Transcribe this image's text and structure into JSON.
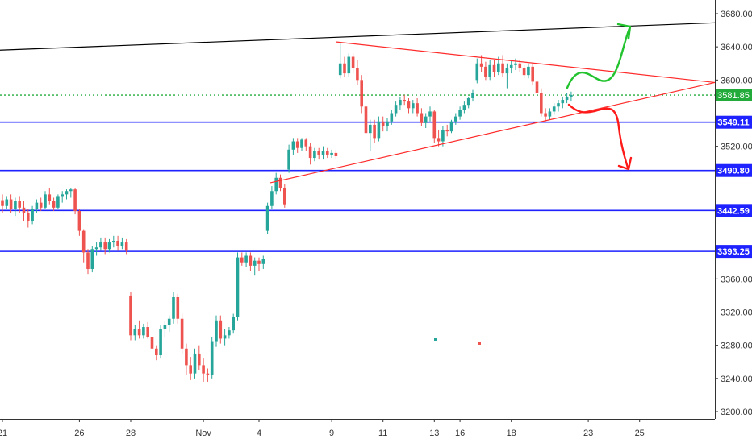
{
  "chart_data": {
    "type": "candlestick",
    "colors": {
      "up": "#26a69a",
      "down": "#ef5350",
      "level": "#1e22ff",
      "current": "#22ab3a",
      "trendline_top": "#000000",
      "triangle": "#ff2b2b",
      "arrow_up": "#22c32e",
      "arrow_down": "#ff1a1a",
      "axis_text": "#333333"
    },
    "y_range": [
      3196,
      3690
    ],
    "y_ticks": [
      "3200.00",
      "3240.00",
      "3280.00",
      "3320.00",
      "3360.00",
      "3520.00",
      "3600.00",
      "3640.00",
      "3680.00"
    ],
    "x_ticks": [
      {
        "label": "21",
        "i": 0
      },
      {
        "label": "26",
        "i": 18
      },
      {
        "label": "28",
        "i": 30
      },
      {
        "label": "Nov",
        "i": 47
      },
      {
        "label": "4",
        "i": 60
      },
      {
        "label": "9",
        "i": 77
      },
      {
        "label": "11",
        "i": 89
      },
      {
        "label": "13",
        "i": 101
      },
      {
        "label": "16",
        "i": 107
      },
      {
        "label": "18",
        "i": 119
      },
      {
        "label": "23",
        "i": 137
      },
      {
        "label": "25",
        "i": 149
      }
    ],
    "levels": [
      {
        "label": "3549.11",
        "value": 3549.11
      },
      {
        "label": "3490.80",
        "value": 3490.8
      },
      {
        "label": "3442.59",
        "value": 3442.59
      },
      {
        "label": "3393.25",
        "value": 3393.25
      }
    ],
    "current_price": {
      "label": "3581.85",
      "value": 3581.85
    },
    "candles": [
      [
        3455,
        3462,
        3440,
        3448
      ],
      [
        3448,
        3460,
        3444,
        3456
      ],
      [
        3456,
        3462,
        3440,
        3444
      ],
      [
        3444,
        3458,
        3436,
        3454
      ],
      [
        3454,
        3460,
        3440,
        3446
      ],
      [
        3446,
        3454,
        3430,
        3440
      ],
      [
        3440,
        3444,
        3422,
        3430
      ],
      [
        3430,
        3448,
        3426,
        3444
      ],
      [
        3444,
        3456,
        3440,
        3452
      ],
      [
        3452,
        3458,
        3442,
        3446
      ],
      [
        3446,
        3466,
        3444,
        3462
      ],
      [
        3462,
        3470,
        3450,
        3454
      ],
      [
        3454,
        3458,
        3442,
        3446
      ],
      [
        3446,
        3462,
        3444,
        3460
      ],
      [
        3460,
        3466,
        3452,
        3462
      ],
      [
        3462,
        3468,
        3456,
        3466
      ],
      [
        3466,
        3470,
        3458,
        3468
      ],
      [
        3468,
        3470,
        3438,
        3442
      ],
      [
        3442,
        3444,
        3412,
        3418
      ],
      [
        3418,
        3420,
        3380,
        3392
      ],
      [
        3392,
        3396,
        3366,
        3372
      ],
      [
        3372,
        3400,
        3368,
        3396
      ],
      [
        3396,
        3404,
        3388,
        3398
      ],
      [
        3398,
        3410,
        3394,
        3404
      ],
      [
        3404,
        3410,
        3390,
        3396
      ],
      [
        3396,
        3408,
        3392,
        3404
      ],
      [
        3404,
        3412,
        3398,
        3406
      ],
      [
        3406,
        3412,
        3394,
        3400
      ],
      [
        3400,
        3410,
        3396,
        3404
      ],
      [
        3404,
        3408,
        3390,
        3394
      ],
      [
        3340,
        3344,
        3286,
        3292
      ],
      [
        3292,
        3304,
        3286,
        3300
      ],
      [
        3300,
        3310,
        3288,
        3292
      ],
      [
        3292,
        3306,
        3288,
        3302
      ],
      [
        3302,
        3308,
        3288,
        3290
      ],
      [
        3290,
        3296,
        3270,
        3276
      ],
      [
        3276,
        3280,
        3262,
        3268
      ],
      [
        3268,
        3304,
        3264,
        3300
      ],
      [
        3300,
        3310,
        3290,
        3304
      ],
      [
        3304,
        3316,
        3296,
        3312
      ],
      [
        3312,
        3344,
        3306,
        3338
      ],
      [
        3338,
        3342,
        3306,
        3312
      ],
      [
        3312,
        3318,
        3270,
        3276
      ],
      [
        3276,
        3282,
        3244,
        3256
      ],
      [
        3256,
        3266,
        3238,
        3246
      ],
      [
        3246,
        3276,
        3240,
        3270
      ],
      [
        3270,
        3280,
        3250,
        3256
      ],
      [
        3256,
        3264,
        3236,
        3246
      ],
      [
        3246,
        3252,
        3236,
        3244
      ],
      [
        3244,
        3290,
        3240,
        3284
      ],
      [
        3284,
        3316,
        3278,
        3310
      ],
      [
        3310,
        3316,
        3282,
        3288
      ],
      [
        3288,
        3300,
        3280,
        3292
      ],
      [
        3292,
        3302,
        3288,
        3298
      ],
      [
        3298,
        3318,
        3294,
        3314
      ],
      [
        3314,
        3392,
        3310,
        3386
      ],
      [
        3386,
        3392,
        3376,
        3380
      ],
      [
        3380,
        3392,
        3374,
        3388
      ],
      [
        3388,
        3392,
        3370,
        3376
      ],
      [
        3376,
        3386,
        3364,
        3382
      ],
      [
        3382,
        3386,
        3370,
        3378
      ],
      [
        3378,
        3388,
        3372,
        3384
      ],
      [
        3418,
        3452,
        3414,
        3448
      ],
      [
        3448,
        3472,
        3444,
        3466
      ],
      [
        3466,
        3488,
        3462,
        3482
      ],
      [
        3482,
        3486,
        3466,
        3470
      ],
      [
        3470,
        3474,
        3446,
        3450
      ],
      [
        3492,
        3522,
        3488,
        3516
      ],
      [
        3516,
        3530,
        3510,
        3526
      ],
      [
        3526,
        3530,
        3512,
        3518
      ],
      [
        3518,
        3530,
        3514,
        3528
      ],
      [
        3528,
        3530,
        3514,
        3520
      ],
      [
        3520,
        3524,
        3498,
        3506
      ],
      [
        3506,
        3518,
        3502,
        3514
      ],
      [
        3514,
        3518,
        3504,
        3510
      ],
      [
        3510,
        3520,
        3504,
        3514
      ],
      [
        3514,
        3518,
        3506,
        3510
      ],
      [
        3510,
        3516,
        3506,
        3512
      ],
      [
        3512,
        3516,
        3504,
        3508
      ],
      [
        3606,
        3646,
        3602,
        3620
      ],
      [
        3620,
        3628,
        3604,
        3608
      ],
      [
        3608,
        3632,
        3604,
        3628
      ],
      [
        3628,
        3632,
        3608,
        3614
      ],
      [
        3614,
        3624,
        3594,
        3600
      ],
      [
        3600,
        3606,
        3560,
        3568
      ],
      [
        3568,
        3572,
        3530,
        3536
      ],
      [
        3536,
        3552,
        3514,
        3546
      ],
      [
        3546,
        3552,
        3524,
        3530
      ],
      [
        3530,
        3556,
        3526,
        3550
      ],
      [
        3550,
        3556,
        3538,
        3544
      ],
      [
        3544,
        3554,
        3538,
        3550
      ],
      [
        3550,
        3564,
        3546,
        3560
      ],
      [
        3560,
        3574,
        3556,
        3570
      ],
      [
        3570,
        3580,
        3564,
        3576
      ],
      [
        3576,
        3582,
        3570,
        3574
      ],
      [
        3574,
        3578,
        3560,
        3566
      ],
      [
        3566,
        3576,
        3560,
        3572
      ],
      [
        3572,
        3578,
        3556,
        3560
      ],
      [
        3560,
        3566,
        3544,
        3548
      ],
      [
        3548,
        3560,
        3542,
        3556
      ],
      [
        3556,
        3568,
        3550,
        3562
      ],
      [
        3562,
        3564,
        3524,
        3530
      ],
      [
        3530,
        3540,
        3520,
        3526
      ],
      [
        3526,
        3544,
        3520,
        3540
      ],
      [
        3540,
        3546,
        3532,
        3538
      ],
      [
        3538,
        3552,
        3536,
        3550
      ],
      [
        3550,
        3560,
        3546,
        3556
      ],
      [
        3556,
        3568,
        3552,
        3564
      ],
      [
        3564,
        3574,
        3560,
        3570
      ],
      [
        3570,
        3580,
        3566,
        3578
      ],
      [
        3578,
        3588,
        3574,
        3584
      ],
      [
        3600,
        3626,
        3596,
        3620
      ],
      [
        3620,
        3630,
        3610,
        3616
      ],
      [
        3616,
        3622,
        3600,
        3604
      ],
      [
        3604,
        3624,
        3600,
        3618
      ],
      [
        3618,
        3624,
        3604,
        3610
      ],
      [
        3610,
        3628,
        3606,
        3620
      ],
      [
        3620,
        3630,
        3604,
        3608
      ],
      [
        3608,
        3620,
        3590,
        3614
      ],
      [
        3614,
        3624,
        3608,
        3618
      ],
      [
        3618,
        3626,
        3612,
        3620
      ],
      [
        3620,
        3624,
        3610,
        3614
      ],
      [
        3614,
        3618,
        3602,
        3606
      ],
      [
        3606,
        3620,
        3602,
        3616
      ],
      [
        3616,
        3620,
        3594,
        3598
      ],
      [
        3598,
        3604,
        3580,
        3584
      ],
      [
        3584,
        3590,
        3556,
        3560
      ],
      [
        3560,
        3566,
        3550,
        3556
      ],
      [
        3556,
        3566,
        3552,
        3562
      ],
      [
        3562,
        3572,
        3558,
        3568
      ],
      [
        3568,
        3576,
        3562,
        3572
      ],
      [
        3572,
        3580,
        3566,
        3576
      ],
      [
        3576,
        3584,
        3572,
        3580
      ],
      [
        3580,
        3586,
        3574,
        3582
      ]
    ]
  }
}
